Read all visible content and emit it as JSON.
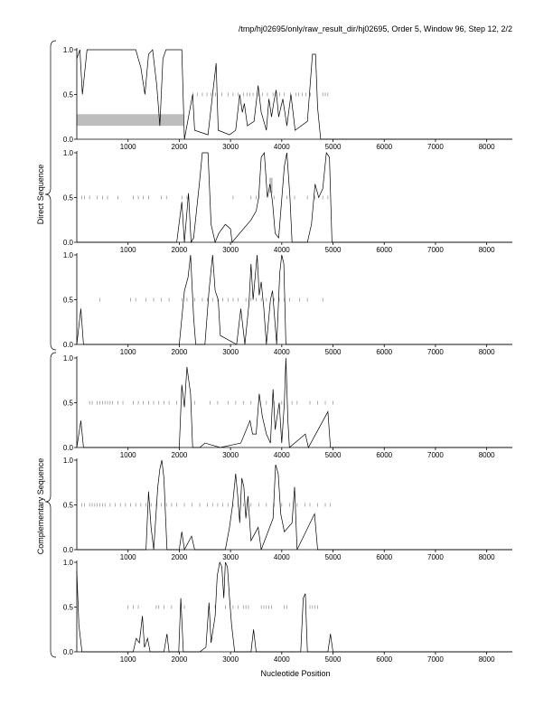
{
  "header": "/tmp/hj02695/only/raw_result_dir/hj02695, Order 5, Window 96, Step 12, 2/2",
  "group_labels": [
    "Direct Sequence",
    "Complementary Sequence"
  ],
  "xlabel": "Nucleotide Position",
  "ytick_labels": [
    "0.0",
    "0.5",
    "1.0"
  ],
  "xtick_labels": [
    "1000",
    "2000",
    "3000",
    "4000",
    "5000",
    "6000",
    "7000",
    "8000"
  ],
  "chart_data": {
    "type": "line",
    "x_range": [
      0,
      8500
    ],
    "y_range": [
      0,
      1
    ],
    "x_ticks": [
      1000,
      2000,
      3000,
      4000,
      5000,
      6000,
      7000,
      8000
    ],
    "y_ticks": [
      0,
      0.5,
      1
    ],
    "xlabel": "Nucleotide Position",
    "panels": [
      {
        "group": "Direct Sequence",
        "peaks": [
          [
            0,
            0.9
          ],
          [
            60,
            1.0
          ],
          [
            110,
            0.5
          ],
          [
            200,
            1.0
          ],
          [
            1150,
            1.0
          ],
          [
            1250,
            0.8
          ],
          [
            1330,
            0.5
          ],
          [
            1400,
            0.95
          ],
          [
            1480,
            1.0
          ],
          [
            1560,
            0.6
          ],
          [
            1620,
            0.15
          ],
          [
            1680,
            0.9
          ],
          [
            1740,
            1.0
          ],
          [
            1850,
            1.0
          ],
          [
            1980,
            1.0
          ],
          [
            2050,
            1.0
          ],
          [
            2100,
            0.0
          ],
          [
            2260,
            0.5
          ],
          [
            2300,
            0.1
          ],
          [
            2560,
            0.05
          ],
          [
            2720,
            0.85
          ],
          [
            2760,
            0.1
          ],
          [
            2980,
            0.05
          ],
          [
            3100,
            0.1
          ],
          [
            3180,
            0.5
          ],
          [
            3230,
            0.3
          ],
          [
            3270,
            0.4
          ],
          [
            3330,
            0.15
          ],
          [
            3460,
            0.2
          ],
          [
            3540,
            0.6
          ],
          [
            3600,
            0.3
          ],
          [
            3650,
            0.2
          ],
          [
            3700,
            0.1
          ],
          [
            3750,
            0.45
          ],
          [
            3800,
            0.25
          ],
          [
            3840,
            0.4
          ],
          [
            3890,
            0.55
          ],
          [
            3940,
            0.25
          ],
          [
            4020,
            0.45
          ],
          [
            4100,
            0.15
          ],
          [
            4180,
            0.5
          ],
          [
            4260,
            0.1
          ],
          [
            4500,
            0.2
          ],
          [
            4600,
            0.95
          ],
          [
            4660,
            0.95
          ],
          [
            4700,
            0.35
          ],
          [
            4760,
            0.0
          ]
        ],
        "tick_rows": [
          {
            "y": 0.5,
            "x": [
              2270,
              2350,
              2450,
              2540,
              2620,
              2710,
              2830,
              2950,
              3050,
              3150,
              3250,
              3320,
              3380,
              3440,
              3550,
              3620,
              3720,
              3830,
              3900,
              3960,
              4050,
              4170,
              4280,
              4330,
              4400,
              4470,
              4560,
              4800,
              4850,
              4900
            ]
          }
        ],
        "bar": {
          "x": [
            0,
            2080
          ],
          "y": [
            0.15,
            0.28
          ]
        }
      },
      {
        "group": "Direct Sequence",
        "peaks": [
          [
            0,
            0.0
          ],
          [
            1950,
            0.0
          ],
          [
            2050,
            0.45
          ],
          [
            2100,
            0.0
          ],
          [
            2180,
            0.55
          ],
          [
            2230,
            0.0
          ],
          [
            2280,
            0.05
          ],
          [
            2400,
            0.7
          ],
          [
            2450,
            1.0
          ],
          [
            2560,
            1.0
          ],
          [
            2620,
            0.2
          ],
          [
            2700,
            0.0
          ],
          [
            2770,
            0.1
          ],
          [
            2900,
            0.2
          ],
          [
            3000,
            0.15
          ],
          [
            3030,
            0.0
          ],
          [
            3400,
            0.25
          ],
          [
            3500,
            0.35
          ],
          [
            3550,
            0.5
          ],
          [
            3600,
            0.95
          ],
          [
            3660,
            1.0
          ],
          [
            3720,
            0.5
          ],
          [
            3770,
            0.65
          ],
          [
            3820,
            0.45
          ],
          [
            3870,
            0.1
          ],
          [
            3940,
            0.05
          ],
          [
            4050,
            0.85
          ],
          [
            4100,
            1.0
          ],
          [
            4160,
            0.5
          ],
          [
            4200,
            0.0
          ],
          [
            4500,
            0.0
          ],
          [
            4580,
            0.2
          ],
          [
            4650,
            0.65
          ],
          [
            4720,
            0.5
          ],
          [
            4800,
            0.6
          ],
          [
            4870,
            1.0
          ],
          [
            4930,
            0.95
          ],
          [
            4980,
            0.0
          ]
        ],
        "tick_rows": [
          {
            "y": 0.5,
            "x": [
              100,
              150,
              250,
              400,
              500,
              600,
              800,
              1100,
              1200,
              1300,
              1400,
              1650,
              1750,
              2050,
              2150,
              3050,
              3400,
              3500,
              3550,
              3850,
              4100,
              4250,
              4500,
              4650,
              4800,
              4900
            ]
          }
        ],
        "bar": {
          "x": [
            3760,
            3820
          ],
          "y": [
            0.55,
            0.72
          ]
        }
      },
      {
        "group": "Direct Sequence",
        "peaks": [
          [
            0,
            0.0
          ],
          [
            80,
            0.4
          ],
          [
            130,
            0.0
          ],
          [
            2000,
            0.0
          ],
          [
            2100,
            0.6
          ],
          [
            2170,
            0.75
          ],
          [
            2220,
            1.0
          ],
          [
            2280,
            0.3
          ],
          [
            2320,
            0.0
          ],
          [
            2500,
            0.0
          ],
          [
            2580,
            0.6
          ],
          [
            2650,
            1.0
          ],
          [
            2700,
            0.6
          ],
          [
            2760,
            0.5
          ],
          [
            2800,
            0.1
          ],
          [
            3120,
            0.0
          ],
          [
            3200,
            0.4
          ],
          [
            3280,
            0.0
          ],
          [
            3360,
            0.45
          ],
          [
            3400,
            0.9
          ],
          [
            3440,
            0.5
          ],
          [
            3520,
            1.0
          ],
          [
            3560,
            0.55
          ],
          [
            3600,
            0.7
          ],
          [
            3650,
            0.4
          ],
          [
            3700,
            0.0
          ],
          [
            3780,
            0.5
          ],
          [
            3820,
            0.6
          ],
          [
            3860,
            0.3
          ],
          [
            3900,
            0.0
          ],
          [
            3960,
            0.8
          ],
          [
            4000,
            1.0
          ],
          [
            4040,
            0.9
          ],
          [
            4080,
            0.0
          ]
        ],
        "tick_rows": [
          {
            "y": 0.5,
            "x": [
              450,
              1050,
              1150,
              1350,
              1500,
              1650,
              1800,
              2050,
              2150,
              2300,
              2450,
              2550,
              2650,
              2750,
              2850,
              2950,
              3050,
              3150,
              3300,
              3400,
              3500,
              3600,
              3700,
              3850,
              3950,
              4050,
              4150,
              4350,
              4500,
              4800
            ]
          }
        ],
        "bar": null
      },
      {
        "group": "Complementary Sequence",
        "peaks": [
          [
            0,
            0.0
          ],
          [
            80,
            0.3
          ],
          [
            130,
            0.0
          ],
          [
            2000,
            0.0
          ],
          [
            2050,
            0.7
          ],
          [
            2100,
            0.45
          ],
          [
            2150,
            0.9
          ],
          [
            2220,
            0.6
          ],
          [
            2260,
            0.0
          ],
          [
            2400,
            0.0
          ],
          [
            2500,
            0.05
          ],
          [
            2800,
            0.0
          ],
          [
            3200,
            0.05
          ],
          [
            3380,
            0.3
          ],
          [
            3430,
            0.15
          ],
          [
            3500,
            0.15
          ],
          [
            3560,
            0.6
          ],
          [
            3620,
            0.35
          ],
          [
            3700,
            0.15
          ],
          [
            3780,
            0.05
          ],
          [
            3830,
            0.65
          ],
          [
            3870,
            0.2
          ],
          [
            3950,
            0.5
          ],
          [
            4000,
            0.05
          ],
          [
            4050,
            0.5
          ],
          [
            4080,
            1.0
          ],
          [
            4120,
            0.3
          ],
          [
            4150,
            0.0
          ],
          [
            4460,
            0.15
          ],
          [
            4520,
            0.0
          ],
          [
            4900,
            0.4
          ],
          [
            4950,
            0.0
          ]
        ],
        "tick_rows": [
          {
            "y": 0.5,
            "x": [
              250,
              300,
              400,
              450,
              500,
              550,
              600,
              650,
              700,
              800,
              900,
              1100,
              1200,
              1300,
              1400,
              1500,
              1600,
              1700,
              1800,
              1950,
              2300,
              2600,
              2750,
              2950,
              3100,
              3250,
              3400,
              3550,
              3700,
              3850,
              4000,
              4200,
              4300,
              4550,
              4700,
              4850,
              5000
            ]
          }
        ],
        "bar": null
      },
      {
        "group": "Complementary Sequence",
        "peaks": [
          [
            0,
            0.0
          ],
          [
            1350,
            0.0
          ],
          [
            1400,
            0.65
          ],
          [
            1450,
            0.25
          ],
          [
            1500,
            0.0
          ],
          [
            1580,
            0.7
          ],
          [
            1620,
            0.9
          ],
          [
            1660,
            1.0
          ],
          [
            1700,
            0.8
          ],
          [
            1760,
            0.0
          ],
          [
            2000,
            0.0
          ],
          [
            2050,
            0.2
          ],
          [
            2100,
            0.0
          ],
          [
            2240,
            0.15
          ],
          [
            2300,
            0.0
          ],
          [
            2900,
            0.0
          ],
          [
            2980,
            0.25
          ],
          [
            3040,
            0.5
          ],
          [
            3100,
            0.85
          ],
          [
            3140,
            0.6
          ],
          [
            3180,
            0.3
          ],
          [
            3220,
            0.8
          ],
          [
            3260,
            0.7
          ],
          [
            3300,
            0.35
          ],
          [
            3340,
            0.6
          ],
          [
            3400,
            0.1
          ],
          [
            3540,
            0.25
          ],
          [
            3600,
            0.0
          ],
          [
            3830,
            0.35
          ],
          [
            3880,
            0.95
          ],
          [
            3930,
            0.85
          ],
          [
            3980,
            0.4
          ],
          [
            4050,
            0.2
          ],
          [
            4200,
            0.3
          ],
          [
            4250,
            0.7
          ],
          [
            4300,
            0.0
          ],
          [
            4640,
            0.4
          ],
          [
            4700,
            0.0
          ]
        ],
        "tick_rows": [
          {
            "y": 0.5,
            "x": [
              100,
              150,
              250,
              300,
              350,
              400,
              450,
              500,
              550,
              650,
              750,
              850,
              950,
              1050,
              1150,
              1250,
              1350,
              1450,
              1550,
              1650,
              1750,
              1850,
              1950,
              2100,
              2250,
              2400,
              2550,
              2650,
              2750,
              2850,
              2950,
              3050,
              3150,
              3250,
              3400,
              3550,
              3700,
              3850,
              4000,
              4150,
              4300,
              4450,
              4550,
              4700,
              4850,
              4950
            ]
          }
        ],
        "bar": null
      },
      {
        "group": "Complementary Sequence",
        "peaks": [
          [
            0,
            0.9
          ],
          [
            40,
            0.3
          ],
          [
            100,
            0.0
          ],
          [
            1100,
            0.0
          ],
          [
            1160,
            0.15
          ],
          [
            1220,
            0.1
          ],
          [
            1280,
            0.4
          ],
          [
            1320,
            0.05
          ],
          [
            1380,
            0.15
          ],
          [
            1430,
            0.0
          ],
          [
            1700,
            0.0
          ],
          [
            1760,
            0.2
          ],
          [
            1800,
            0.0
          ],
          [
            1990,
            0.0
          ],
          [
            2030,
            0.6
          ],
          [
            2080,
            0.0
          ],
          [
            2400,
            0.0
          ],
          [
            2520,
            0.05
          ],
          [
            2580,
            0.55
          ],
          [
            2620,
            0.1
          ],
          [
            2700,
            0.4
          ],
          [
            2740,
            0.85
          ],
          [
            2790,
            1.0
          ],
          [
            2830,
            0.95
          ],
          [
            2870,
            0.6
          ],
          [
            2900,
            1.0
          ],
          [
            2940,
            0.95
          ],
          [
            2980,
            0.6
          ],
          [
            3020,
            0.3
          ],
          [
            3080,
            0.0
          ],
          [
            3400,
            0.0
          ],
          [
            3450,
            0.25
          ],
          [
            3500,
            0.0
          ],
          [
            4370,
            0.0
          ],
          [
            4420,
            0.6
          ],
          [
            4460,
            0.65
          ],
          [
            4500,
            0.0
          ],
          [
            4900,
            0.0
          ],
          [
            4950,
            0.2
          ],
          [
            5000,
            0.0
          ]
        ],
        "tick_rows": [
          {
            "y": 0.5,
            "x": [
              1000,
              1100,
              1200,
              1550,
              1600,
              1700,
              1850,
              2100,
              2700,
              2900,
              3050,
              3150,
              3250,
              3300,
              3350,
              3600,
              3650,
              3700,
              3750,
              3800,
              4050,
              4100,
              4550,
              4600,
              4650,
              4700
            ]
          }
        ],
        "bar": null
      }
    ]
  }
}
